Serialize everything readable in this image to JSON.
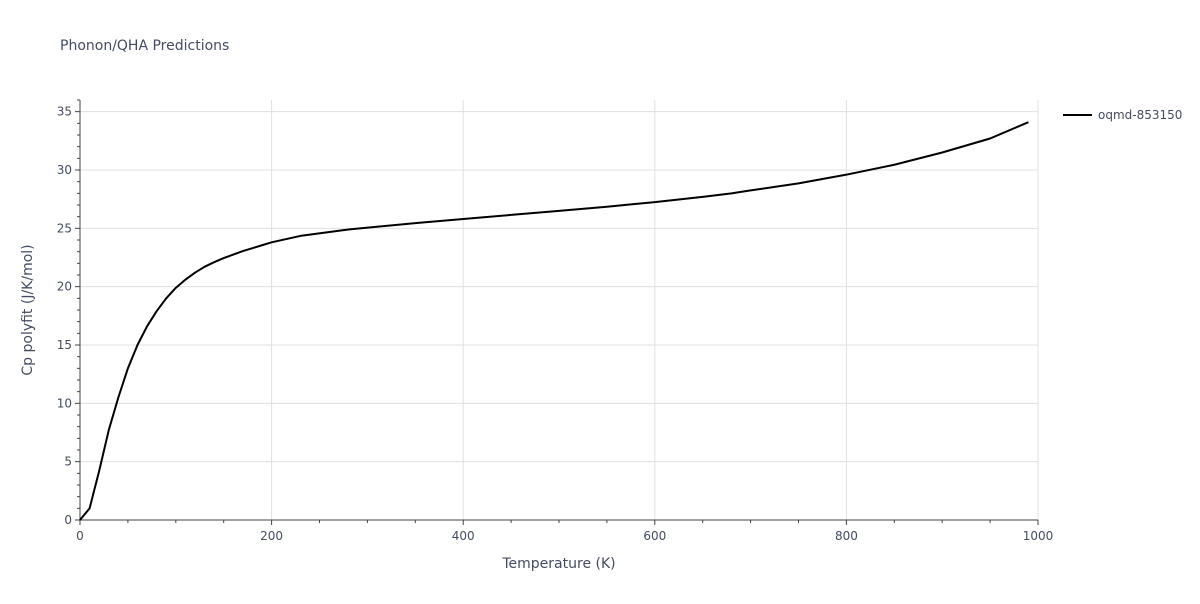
{
  "chart_data": {
    "type": "line",
    "title": "Phonon/QHA Predictions",
    "xlabel": "Temperature (K)",
    "ylabel": "Cp polyfit (J/K/mol)",
    "xlim": [
      0,
      1000
    ],
    "ylim": [
      0,
      36
    ],
    "xticks": [
      0,
      200,
      400,
      600,
      800,
      1000
    ],
    "yticks": [
      0,
      5,
      10,
      15,
      20,
      25,
      30,
      35
    ],
    "grid": true,
    "legend_position": "top-right",
    "series": [
      {
        "name": "oqmd-853150",
        "color": "#000000",
        "x": [
          0,
          10,
          20,
          30,
          40,
          50,
          60,
          70,
          80,
          90,
          100,
          110,
          120,
          130,
          140,
          150,
          160,
          170,
          180,
          190,
          200,
          230,
          280,
          350,
          400,
          450,
          500,
          550,
          600,
          650,
          680,
          700,
          750,
          800,
          850,
          900,
          950,
          990
        ],
        "y": [
          0,
          1.0,
          4.2,
          7.7,
          10.5,
          13.0,
          15.0,
          16.6,
          17.9,
          19.0,
          19.9,
          20.6,
          21.2,
          21.7,
          22.1,
          22.45,
          22.75,
          23.05,
          23.3,
          23.55,
          23.8,
          24.35,
          24.9,
          25.45,
          25.8,
          26.15,
          26.5,
          26.85,
          27.25,
          27.7,
          28.0,
          28.25,
          28.85,
          29.6,
          30.45,
          31.5,
          32.7,
          34.1
        ]
      }
    ]
  }
}
